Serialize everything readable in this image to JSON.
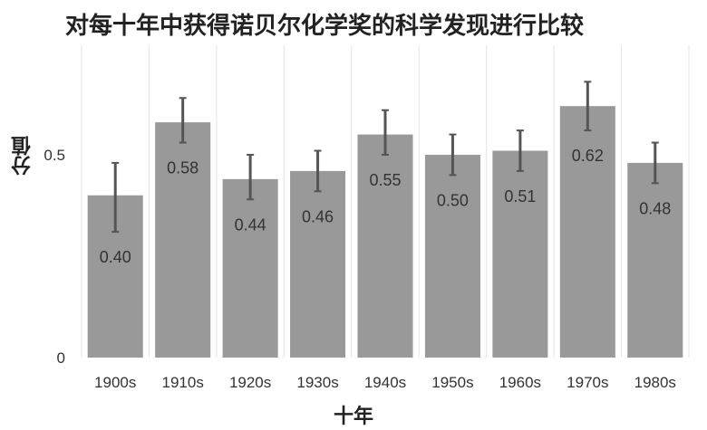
{
  "chart_data": {
    "type": "bar",
    "title": "对每十年中获得诺贝尔化学奖的科学发现进行比较",
    "xlabel": "十年",
    "ylabel": "分值",
    "categories": [
      "1900s",
      "1910s",
      "1920s",
      "1930s",
      "1940s",
      "1950s",
      "1960s",
      "1970s",
      "1980s"
    ],
    "values": [
      0.4,
      0.58,
      0.44,
      0.46,
      0.55,
      0.5,
      0.51,
      0.62,
      0.48
    ],
    "value_labels": [
      "0.40",
      "0.58",
      "0.44",
      "0.46",
      "0.55",
      "0.50",
      "0.51",
      "0.62",
      "0.48"
    ],
    "error_low": [
      0.31,
      0.53,
      0.39,
      0.41,
      0.5,
      0.45,
      0.46,
      0.56,
      0.43
    ],
    "error_high": [
      0.48,
      0.64,
      0.5,
      0.51,
      0.61,
      0.55,
      0.56,
      0.68,
      0.53
    ],
    "yticks": [
      0,
      0.5
    ],
    "ytick_labels": [
      "0",
      "0.5"
    ],
    "ylim": [
      0,
      0.77
    ],
    "grid": "vertical",
    "colors": {
      "bar": "#999999",
      "error": "#555555",
      "grid": "#e4e4e4",
      "text": "#333333"
    }
  }
}
